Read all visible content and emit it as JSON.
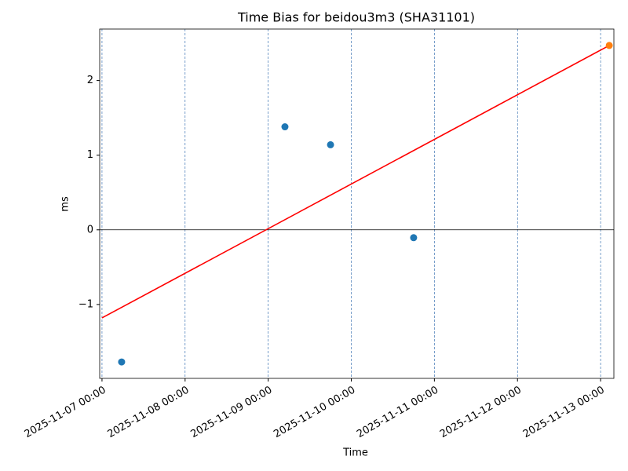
{
  "chart_data": {
    "type": "scatter",
    "title": "Time Bias for beidou3m3 (SHA31101)",
    "xlabel": "Time",
    "ylabel": "ms",
    "xlim": [
      "2025-11-06 23:20",
      "2025-11-13 03:50"
    ],
    "xticks": [
      "2025-11-07 00:00",
      "2025-11-08 00:00",
      "2025-11-09 00:00",
      "2025-11-10 00:00",
      "2025-11-11 00:00",
      "2025-11-12 00:00",
      "2025-11-13 00:00"
    ],
    "ylim": [
      -1.99,
      2.69
    ],
    "yticks": [
      {
        "value": -1,
        "label": "−1"
      },
      0,
      1,
      2
    ],
    "xgrid": true,
    "zero_line": 0,
    "series": [
      {
        "type": "scatter",
        "color": "#1f77b4",
        "x": [
          "2025-11-07 05:40",
          "2025-11-09 04:50",
          "2025-11-09 18:00",
          "2025-11-10 18:00"
        ],
        "values": [
          -1.77,
          1.38,
          1.14,
          -0.105
        ]
      },
      {
        "type": "scatter",
        "color": "#ff7f0e",
        "x": [
          "2025-11-13 02:30"
        ],
        "values": [
          2.47
        ]
      },
      {
        "type": "line",
        "color": "#ff0000",
        "x": [
          "2025-11-07 00:00",
          "2025-11-13 02:30"
        ],
        "values": [
          -1.18,
          2.47
        ]
      }
    ]
  }
}
